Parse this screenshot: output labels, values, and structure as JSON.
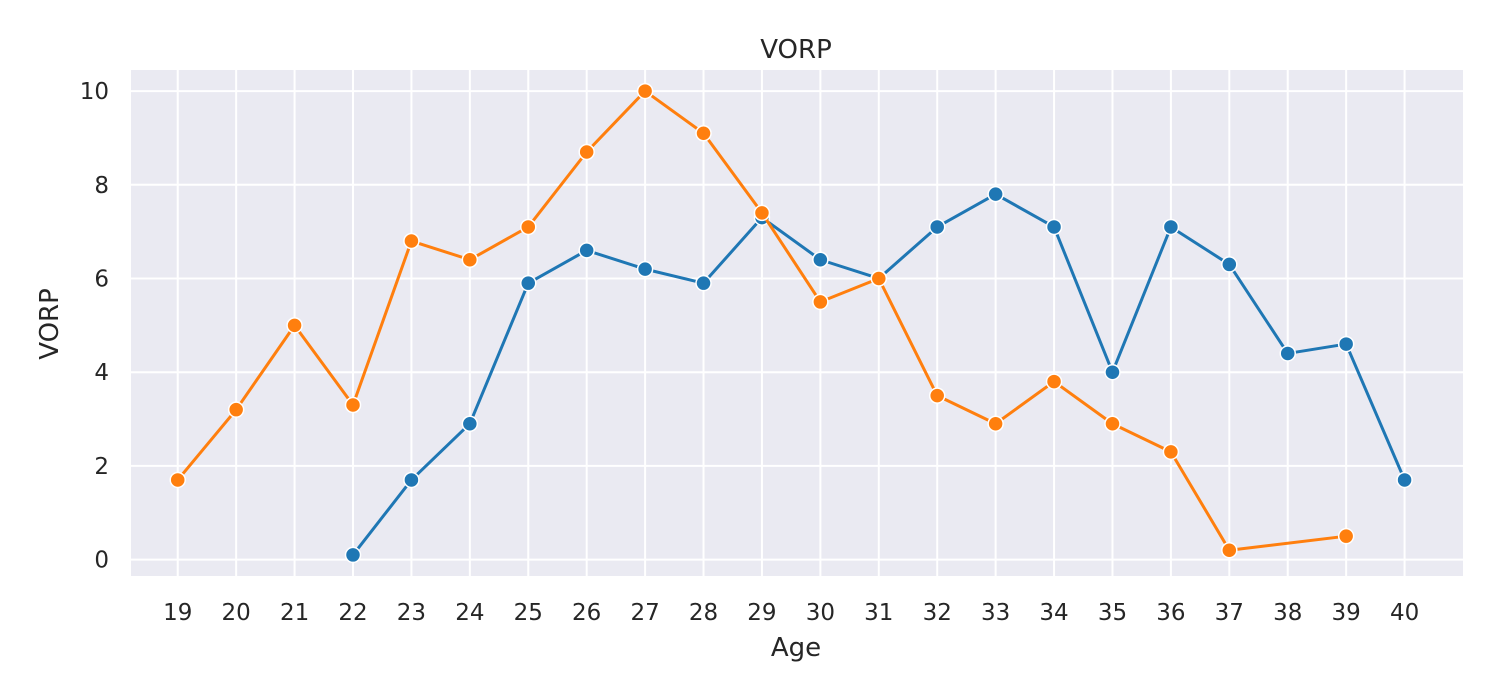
{
  "chart_data": {
    "type": "line",
    "title": "VORP",
    "xlabel": "Age",
    "ylabel": "VORP",
    "x_ticks": [
      19,
      20,
      21,
      22,
      23,
      24,
      25,
      26,
      27,
      28,
      29,
      30,
      31,
      32,
      33,
      34,
      35,
      36,
      37,
      38,
      39,
      40
    ],
    "y_ticks": [
      0,
      2,
      4,
      6,
      8,
      10
    ],
    "xlim": [
      18.2,
      41.0
    ],
    "ylim": [
      -0.35,
      10.45
    ],
    "grid": true,
    "series": [
      {
        "color": "#1f77b4",
        "x": [
          22,
          23,
          24,
          25,
          26,
          27,
          28,
          29,
          30,
          31,
          32,
          33,
          34,
          35,
          36,
          37,
          38,
          39,
          40
        ],
        "y": [
          0.1,
          1.7,
          2.9,
          5.9,
          6.6,
          6.2,
          5.9,
          7.3,
          6.4,
          6.0,
          7.1,
          7.8,
          7.1,
          4.0,
          7.1,
          6.3,
          4.4,
          4.6,
          1.7
        ]
      },
      {
        "color": "#ff7f0e",
        "x": [
          19,
          20,
          21,
          22,
          23,
          24,
          25,
          26,
          27,
          28,
          29,
          30,
          31,
          32,
          33,
          34,
          35,
          36,
          37,
          39
        ],
        "y": [
          1.7,
          3.2,
          5.0,
          3.3,
          6.8,
          6.4,
          7.1,
          8.7,
          10.0,
          9.1,
          7.4,
          5.5,
          6.0,
          3.5,
          2.9,
          3.8,
          2.9,
          2.3,
          0.2,
          0.5
        ]
      }
    ]
  }
}
